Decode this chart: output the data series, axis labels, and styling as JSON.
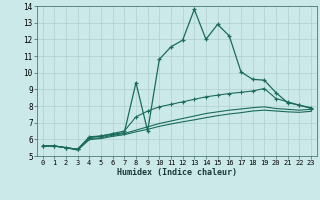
{
  "xlabel": "Humidex (Indice chaleur)",
  "bg_color": "#cce9e9",
  "grid_color": "#afd0d0",
  "line_color": "#1a6b5a",
  "xlim": [
    -0.5,
    23.5
  ],
  "ylim": [
    5,
    14
  ],
  "yticks": [
    5,
    6,
    7,
    8,
    9,
    10,
    11,
    12,
    13,
    14
  ],
  "xticks": [
    0,
    1,
    2,
    3,
    4,
    5,
    6,
    7,
    8,
    9,
    10,
    11,
    12,
    13,
    14,
    15,
    16,
    17,
    18,
    19,
    20,
    21,
    22,
    23
  ],
  "series1_x": [
    0,
    1,
    2,
    3,
    4,
    5,
    6,
    7,
    8,
    9,
    10,
    11,
    12,
    13,
    14,
    15,
    16,
    17,
    18,
    19,
    20,
    21,
    22,
    23
  ],
  "series1_y": [
    5.6,
    5.6,
    5.5,
    5.4,
    6.15,
    6.2,
    6.3,
    6.4,
    9.4,
    6.5,
    10.8,
    11.55,
    11.95,
    13.8,
    12.0,
    12.9,
    12.2,
    10.05,
    9.6,
    9.55,
    8.8,
    8.2,
    8.05,
    7.9
  ],
  "series2_x": [
    0,
    1,
    2,
    3,
    4,
    5,
    6,
    7,
    8,
    9,
    10,
    11,
    12,
    13,
    14,
    15,
    16,
    17,
    18,
    19,
    20,
    21,
    22,
    23
  ],
  "series2_y": [
    5.6,
    5.6,
    5.5,
    5.4,
    6.1,
    6.2,
    6.35,
    6.5,
    7.35,
    7.7,
    7.95,
    8.1,
    8.25,
    8.4,
    8.55,
    8.65,
    8.75,
    8.82,
    8.9,
    9.05,
    8.45,
    8.25,
    8.05,
    7.85
  ],
  "series3_x": [
    0,
    1,
    2,
    3,
    4,
    5,
    6,
    7,
    8,
    9,
    10,
    11,
    12,
    13,
    14,
    15,
    16,
    17,
    18,
    19,
    20,
    21,
    22,
    23
  ],
  "series3_y": [
    5.6,
    5.6,
    5.5,
    5.4,
    6.05,
    6.1,
    6.25,
    6.35,
    6.55,
    6.75,
    6.95,
    7.1,
    7.25,
    7.4,
    7.55,
    7.65,
    7.75,
    7.82,
    7.9,
    7.95,
    7.85,
    7.8,
    7.75,
    7.8
  ],
  "series4_x": [
    0,
    1,
    2,
    3,
    4,
    5,
    6,
    7,
    8,
    9,
    10,
    11,
    12,
    13,
    14,
    15,
    16,
    17,
    18,
    19,
    20,
    21,
    22,
    23
  ],
  "series4_y": [
    5.6,
    5.6,
    5.5,
    5.35,
    5.98,
    6.05,
    6.18,
    6.28,
    6.45,
    6.6,
    6.78,
    6.92,
    7.05,
    7.17,
    7.3,
    7.42,
    7.52,
    7.6,
    7.7,
    7.75,
    7.7,
    7.65,
    7.62,
    7.68
  ]
}
